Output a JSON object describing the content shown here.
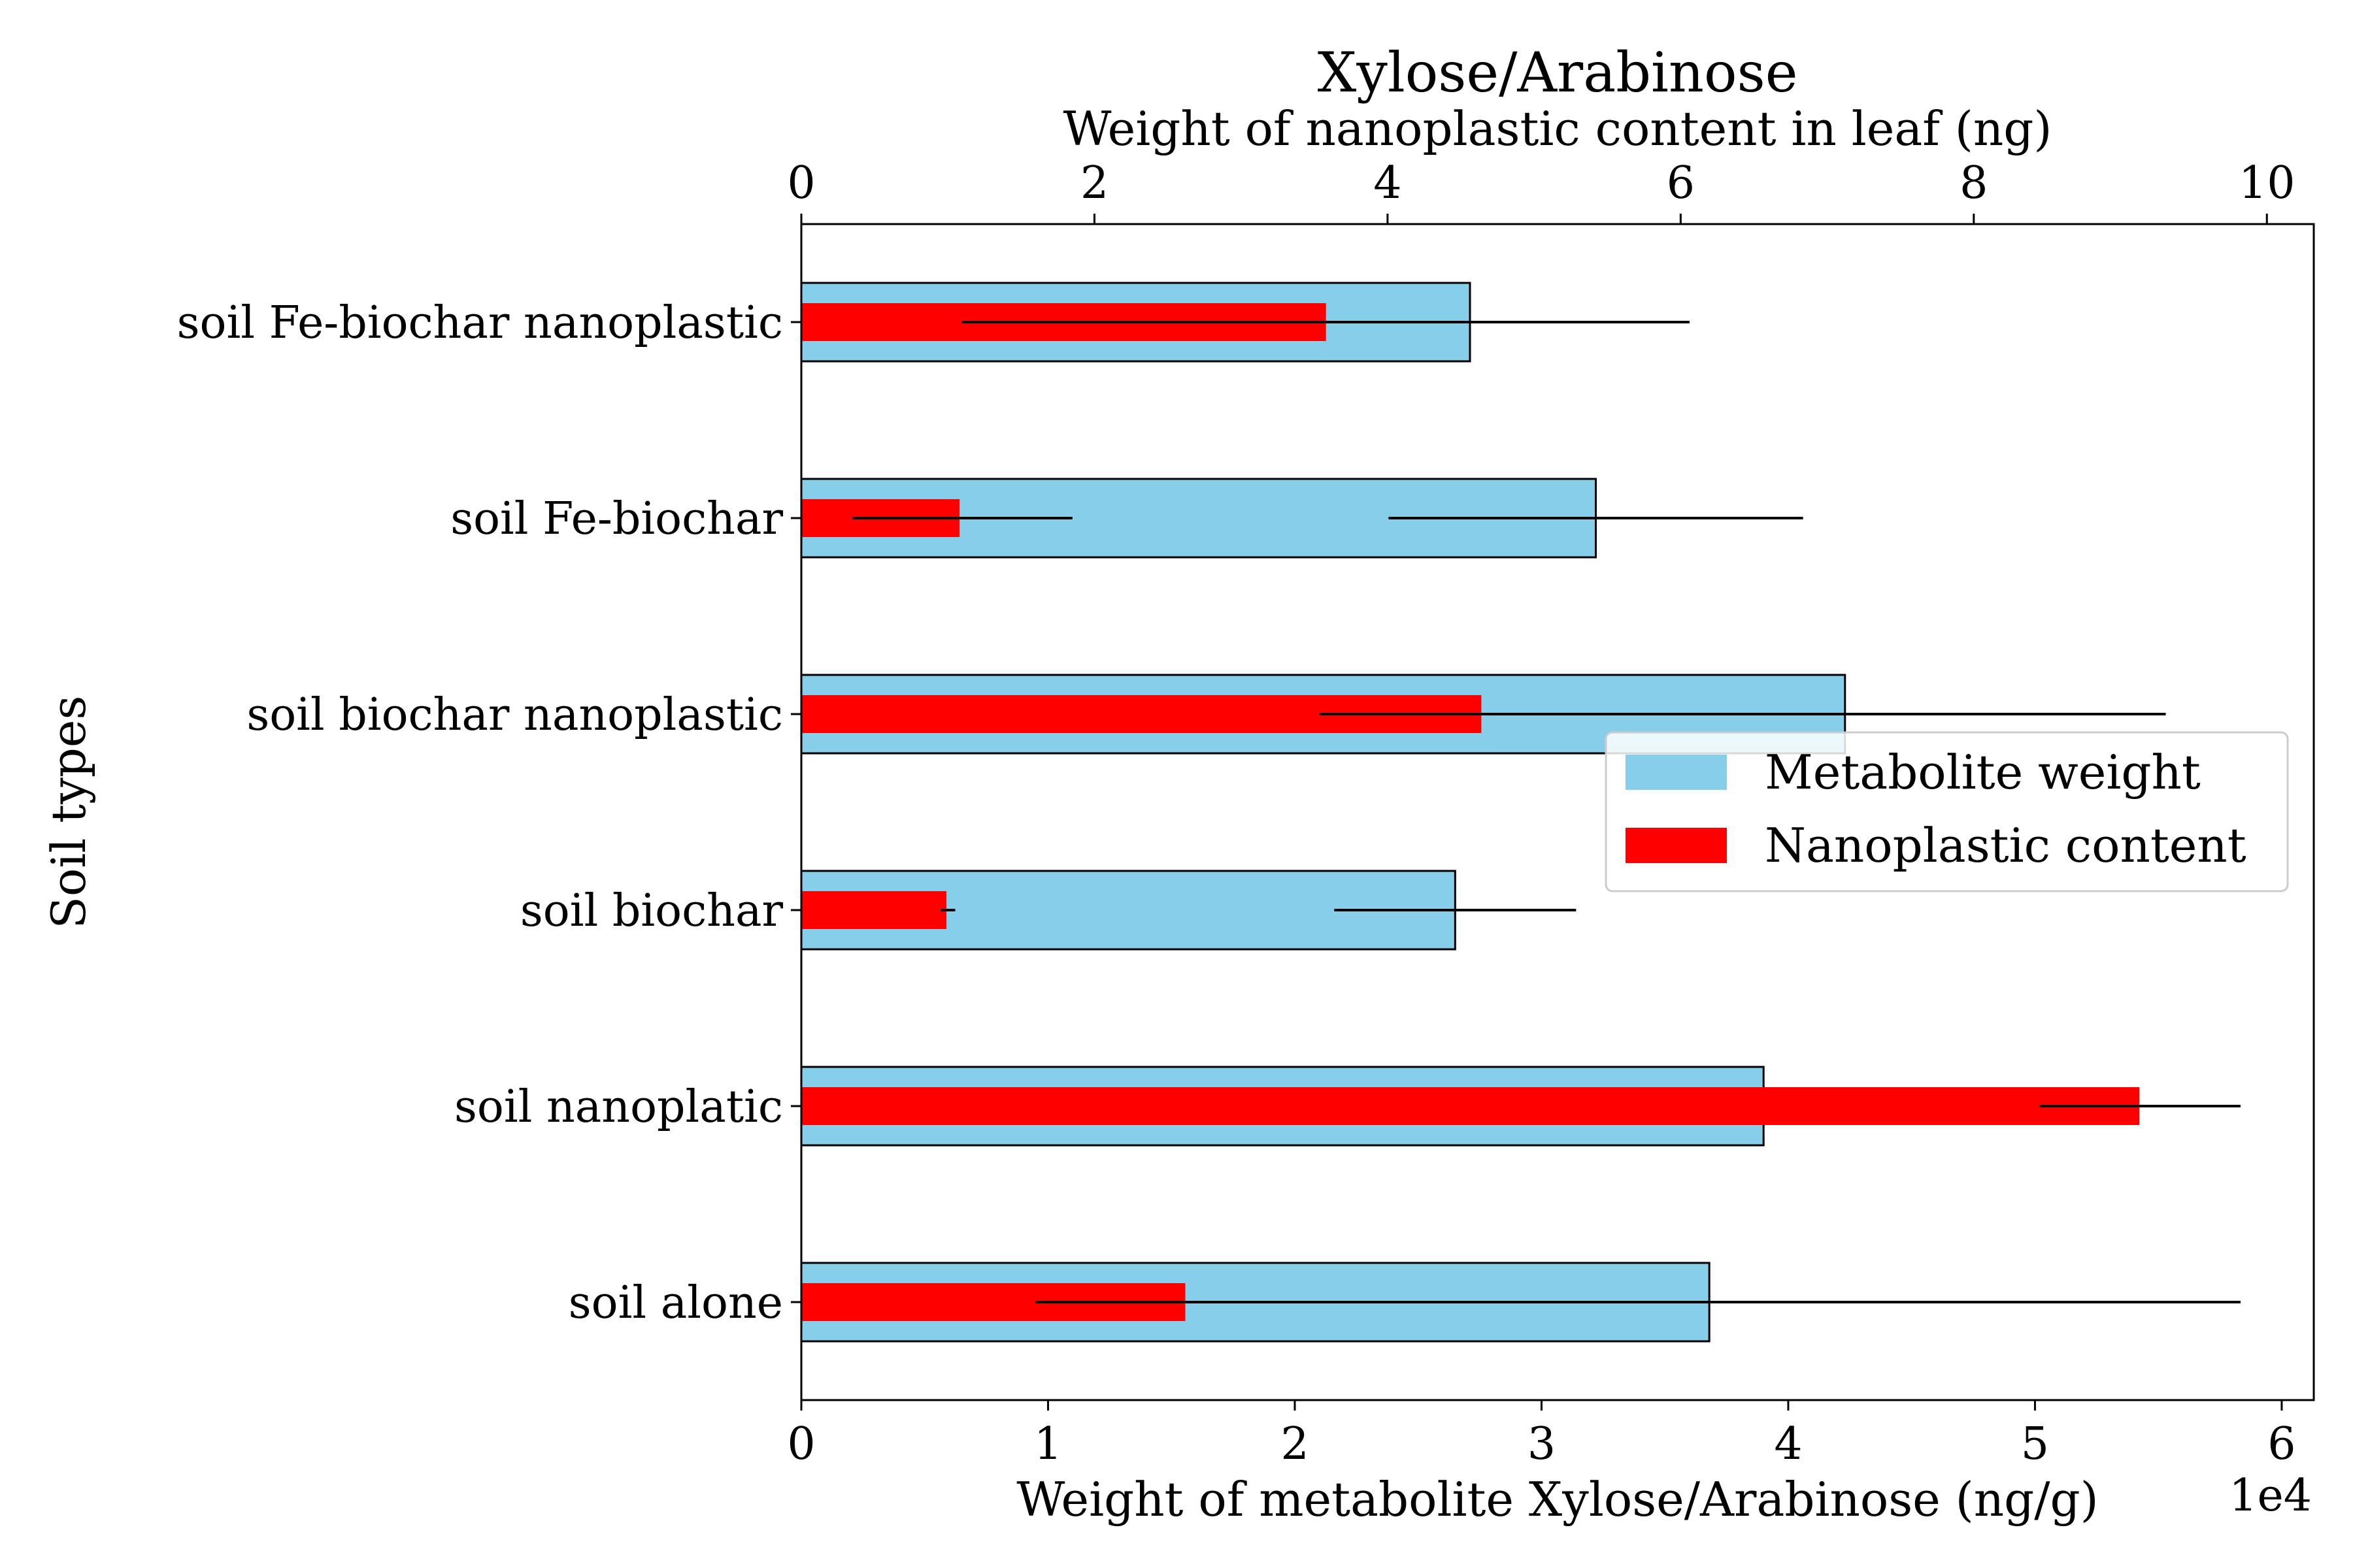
{
  "chart_data": {
    "type": "bar",
    "title": "Xylose/Arabinose",
    "title_color": "#a52a2a",
    "ylabel": "Soil types",
    "categories": [
      "soil alone",
      "soil nanoplatic",
      "soil biochar",
      "soil biochar nanoplastic",
      "soil Fe-biochar",
      "soil Fe-biochar nanoplastic"
    ],
    "bottom_axis": {
      "label": "Weight of metabolite Xylose/Arabinose (ng/g)",
      "ticks": [
        "0",
        "1",
        "2",
        "3",
        "4",
        "5",
        "6"
      ],
      "tick_values": [
        0,
        1,
        2,
        3,
        4,
        5,
        6
      ],
      "multiplier": "1e4",
      "range": [
        0,
        6.13
      ]
    },
    "top_axis": {
      "label": "Weight of nanoplastic content in leaf (ng)",
      "ticks": [
        "0",
        "2",
        "4",
        "6",
        "8",
        "10"
      ],
      "tick_values": [
        0,
        2,
        4,
        6,
        8,
        10
      ],
      "range": [
        0,
        10.32
      ]
    },
    "series": [
      {
        "name": "Metabolite weight",
        "axis": "bottom",
        "color": "#87ceeb",
        "values": [
          3.68,
          3.9,
          2.65,
          4.23,
          3.22,
          2.71
        ],
        "error_low": [
          0.95,
          0.45,
          2.16,
          2.1,
          2.38,
          0.65
        ],
        "error_high": [
          5.83,
          0.45,
          3.14,
          5.53,
          4.06,
          3.6
        ]
      },
      {
        "name": "Nanoplastic content",
        "axis": "top",
        "color": "#ff0000",
        "values": [
          2.62,
          9.13,
          0.99,
          4.64,
          1.08,
          3.58
        ],
        "error_low": [
          1.6,
          8.45,
          0.95,
          3.55,
          0.35,
          1.1
        ],
        "error_high": [
          9.82,
          9.82,
          1.05,
          9.3,
          1.85,
          6.05
        ]
      }
    ],
    "legend": {
      "position": "center-right",
      "entries": [
        "Metabolite weight",
        "Nanoplastic content"
      ]
    }
  }
}
